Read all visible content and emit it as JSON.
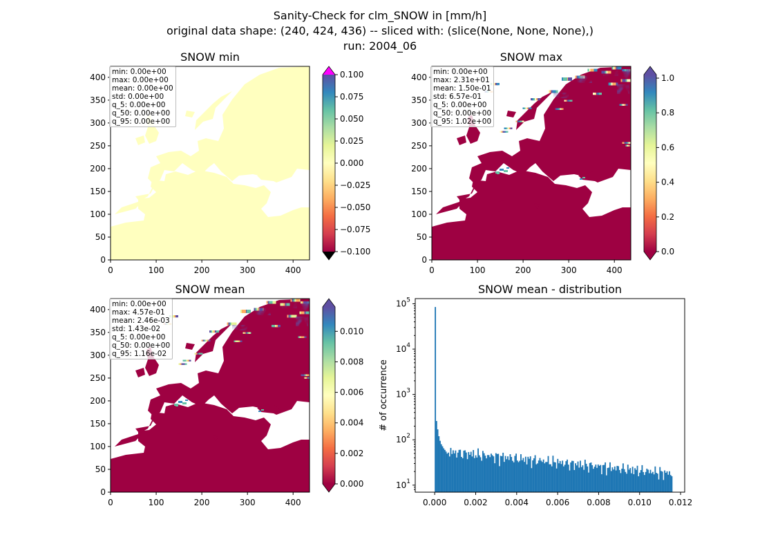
{
  "figure": {
    "title_lines": [
      "Sanity-Check for clm_SNOW in [mm/h]",
      "original data shape: (240, 424, 436) -- sliced with: (slice(None, None, None),)",
      "run: 2004_06"
    ]
  },
  "colors": {
    "map_sea": "#ffffff",
    "map_land_low": "#9e0142",
    "map_land_const": "#ffffbf",
    "colormap": [
      "#9e0142",
      "#d53e4f",
      "#f46d43",
      "#fdae61",
      "#fee08b",
      "#ffffbf",
      "#e6f598",
      "#abdda4",
      "#66c2a5",
      "#3288bd",
      "#5e4fa2"
    ],
    "over_arrow_min": "#ff00ff",
    "under_arrow_min": "#000000",
    "histogram_bar": "#1f77b4"
  },
  "panels": [
    {
      "title": "SNOW min",
      "stats": [
        "min: 0.00e+00",
        "max: 0.00e+00",
        "mean: 0.00e+00",
        "std: 0.00e+00",
        "q_5: 0.00e+00",
        "q_50: 0.00e+00",
        "q_95: 0.00e+00"
      ],
      "map_fill": "constant",
      "x_ticks": [
        "0",
        "100",
        "200",
        "300",
        "400"
      ],
      "y_ticks": [
        "0",
        "50",
        "100",
        "150",
        "200",
        "250",
        "300",
        "350",
        "400"
      ],
      "colorbar": {
        "ticks": [
          "0.100",
          "0.075",
          "0.050",
          "0.025",
          "0.000",
          "−0.025",
          "−0.050",
          "−0.075",
          "−0.100"
        ],
        "range": [
          -0.1,
          0.1
        ],
        "extend": "both"
      }
    },
    {
      "title": "SNOW max",
      "stats": [
        "min: 0.00e+00",
        "max: 2.31e+01",
        "mean: 1.50e-01",
        "std: 6.57e-01",
        "q_5: 0.00e+00",
        "q_50: 0.00e+00",
        "q_95: 1.02e+00"
      ],
      "map_fill": "snow",
      "x_ticks": [
        "0",
        "100",
        "200",
        "300",
        "400"
      ],
      "y_ticks": [
        "0",
        "50",
        "100",
        "150",
        "200",
        "250",
        "300",
        "350",
        "400"
      ],
      "colorbar": {
        "ticks": [
          "1.0",
          "0.8",
          "0.6",
          "0.4",
          "0.2",
          "0.0"
        ],
        "range": [
          0.0,
          1.02
        ],
        "extend": "both"
      }
    },
    {
      "title": "SNOW mean",
      "stats": [
        "min: 0.00e+00",
        "max: 4.57e-01",
        "mean: 2.46e-03",
        "std: 1.43e-02",
        "q_5: 0.00e+00",
        "q_50: 0.00e+00",
        "q_95: 1.16e-02"
      ],
      "map_fill": "snow",
      "x_ticks": [
        "0",
        "100",
        "200",
        "300",
        "400"
      ],
      "y_ticks": [
        "0",
        "50",
        "100",
        "150",
        "200",
        "250",
        "300",
        "350",
        "400"
      ],
      "colorbar": {
        "ticks": [
          "0.010",
          "0.008",
          "0.006",
          "0.004",
          "0.002",
          "0.000"
        ],
        "range": [
          0.0,
          0.0116
        ],
        "extend": "both"
      }
    }
  ],
  "chart_data": {
    "type": "bar",
    "title": "SNOW mean - distribution",
    "xlabel": "",
    "ylabel": "# of occurrence",
    "y_scale": "log",
    "x_ticks": [
      "0.000",
      "0.002",
      "0.004",
      "0.006",
      "0.008",
      "0.010",
      "0.012"
    ],
    "y_ticks": [
      "10^1",
      "10^2",
      "10^3",
      "10^4",
      "10^5"
    ],
    "xlim": [
      -0.00095,
      0.0122
    ],
    "ylim": [
      7,
      130000
    ],
    "bin_range": [
      0.0,
      0.0116
    ],
    "bins": 200,
    "first_bins": [
      85000,
      260,
      170,
      120,
      95,
      80,
      72,
      65,
      60,
      55
    ],
    "tail_trend": {
      "start_value": 55,
      "end_value": 18
    }
  }
}
